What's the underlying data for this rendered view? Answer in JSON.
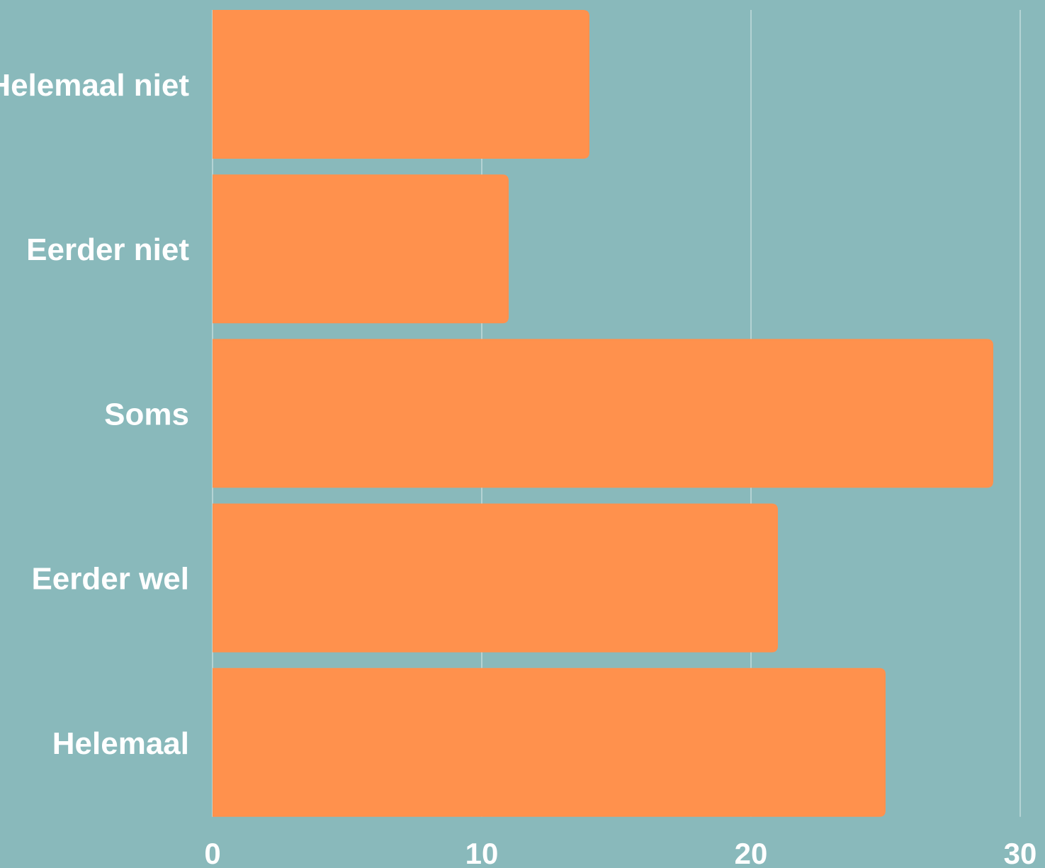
{
  "chart_data": {
    "type": "bar",
    "orientation": "horizontal",
    "categories": [
      "Helemaal niet",
      "Eerder niet",
      "Soms",
      "Eerder wel",
      "Helemaal"
    ],
    "values": [
      14,
      11,
      29,
      21,
      25
    ],
    "xlim": [
      0,
      30
    ],
    "xticks": [
      "0",
      "10",
      "20",
      "30"
    ],
    "grid": true,
    "colors": {
      "background": "#89b9bb",
      "bar": "#ff914d",
      "grid": "#b4d3d4",
      "text": "#ffffff"
    }
  }
}
